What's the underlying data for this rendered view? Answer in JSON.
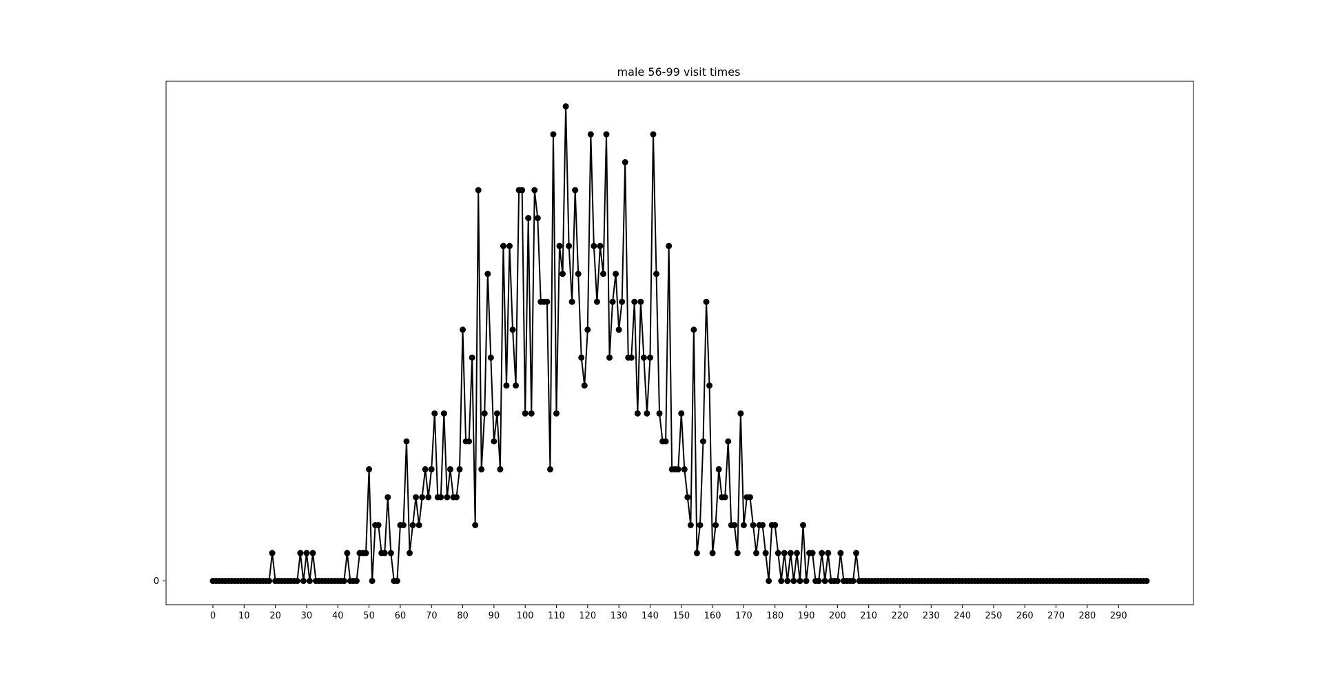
{
  "chart_data": {
    "type": "line",
    "title": "male 56-99 visit times",
    "xlabel": "",
    "ylabel": "",
    "xlim": [
      -15,
      314
    ],
    "ylim": [
      -0.85,
      17.9
    ],
    "x_ticks": [
      0,
      10,
      20,
      30,
      40,
      50,
      60,
      70,
      80,
      90,
      100,
      110,
      120,
      130,
      140,
      150,
      160,
      170,
      180,
      190,
      200,
      210,
      220,
      230,
      240,
      250,
      260,
      270,
      280,
      290
    ],
    "x_tick_labels": [
      "0",
      "10",
      "20",
      "30",
      "40",
      "50",
      "60",
      "70",
      "80",
      "90",
      "100",
      "110",
      "120",
      "130",
      "140",
      "150",
      "160",
      "170",
      "180",
      "190",
      "200",
      "210",
      "220",
      "230",
      "240",
      "250",
      "260",
      "270",
      "280",
      "290"
    ],
    "y_ticks": [
      0
    ],
    "y_tick_labels": [
      "0"
    ],
    "grid": false,
    "legend": "none",
    "line_color": "#000000",
    "marker": "circle",
    "series": [
      {
        "x_start": 0,
        "x_step": 1,
        "values": [
          0,
          0,
          0,
          0,
          0,
          0,
          0,
          0,
          0,
          0,
          0,
          0,
          0,
          0,
          0,
          0,
          0,
          0,
          0,
          1,
          0,
          0,
          0,
          0,
          0,
          0,
          0,
          0,
          1,
          0,
          1,
          0,
          1,
          0,
          0,
          0,
          0,
          0,
          0,
          0,
          0,
          0,
          0,
          1,
          0,
          0,
          0,
          1,
          1,
          1,
          4,
          0,
          2,
          2,
          1,
          1,
          3,
          1,
          0,
          0,
          2,
          2,
          5,
          1,
          2,
          3,
          2,
          3,
          4,
          3,
          4,
          6,
          3,
          3,
          6,
          3,
          4,
          3,
          3,
          4,
          9,
          5,
          5,
          8,
          2,
          14,
          4,
          6,
          11,
          8,
          5,
          6,
          4,
          12,
          7,
          12,
          9,
          7,
          14,
          14,
          6,
          13,
          6,
          14,
          13,
          10,
          10,
          10,
          4,
          16,
          6,
          12,
          11,
          17,
          12,
          10,
          14,
          11,
          8,
          7,
          9,
          16,
          12,
          10,
          12,
          11,
          16,
          8,
          10,
          11,
          9,
          10,
          15,
          8,
          8,
          10,
          6,
          10,
          8,
          6,
          8,
          16,
          11,
          6,
          5,
          5,
          12,
          4,
          4,
          4,
          6,
          4,
          3,
          2,
          9,
          1,
          2,
          5,
          10,
          7,
          1,
          2,
          4,
          3,
          3,
          5,
          2,
          2,
          1,
          6,
          2,
          3,
          3,
          2,
          1,
          2,
          2,
          1,
          0,
          2,
          2,
          1,
          0,
          1,
          0,
          1,
          0,
          1,
          0,
          2,
          0,
          1,
          1,
          0,
          0,
          1,
          0,
          1,
          0,
          0,
          0,
          1,
          0,
          0,
          0,
          0,
          1,
          0,
          0,
          0,
          0,
          0,
          0,
          0,
          0,
          0,
          0,
          0,
          0,
          0,
          0,
          0,
          0,
          0,
          0,
          0,
          0,
          0,
          0,
          0,
          0,
          0,
          0,
          0,
          0,
          0,
          0,
          0,
          0,
          0,
          0,
          0,
          0,
          0,
          0,
          0,
          0,
          0,
          0,
          0,
          0,
          0,
          0,
          0,
          0,
          0,
          0,
          0,
          0,
          0,
          0,
          0,
          0,
          0,
          0,
          0,
          0,
          0,
          0,
          0,
          0,
          0,
          0,
          0,
          0,
          0,
          0,
          0,
          0,
          0,
          0,
          0,
          0,
          0,
          0,
          0,
          0,
          0,
          0,
          0,
          0,
          0,
          0,
          0,
          0,
          0,
          0,
          0,
          0,
          0
        ]
      }
    ]
  }
}
